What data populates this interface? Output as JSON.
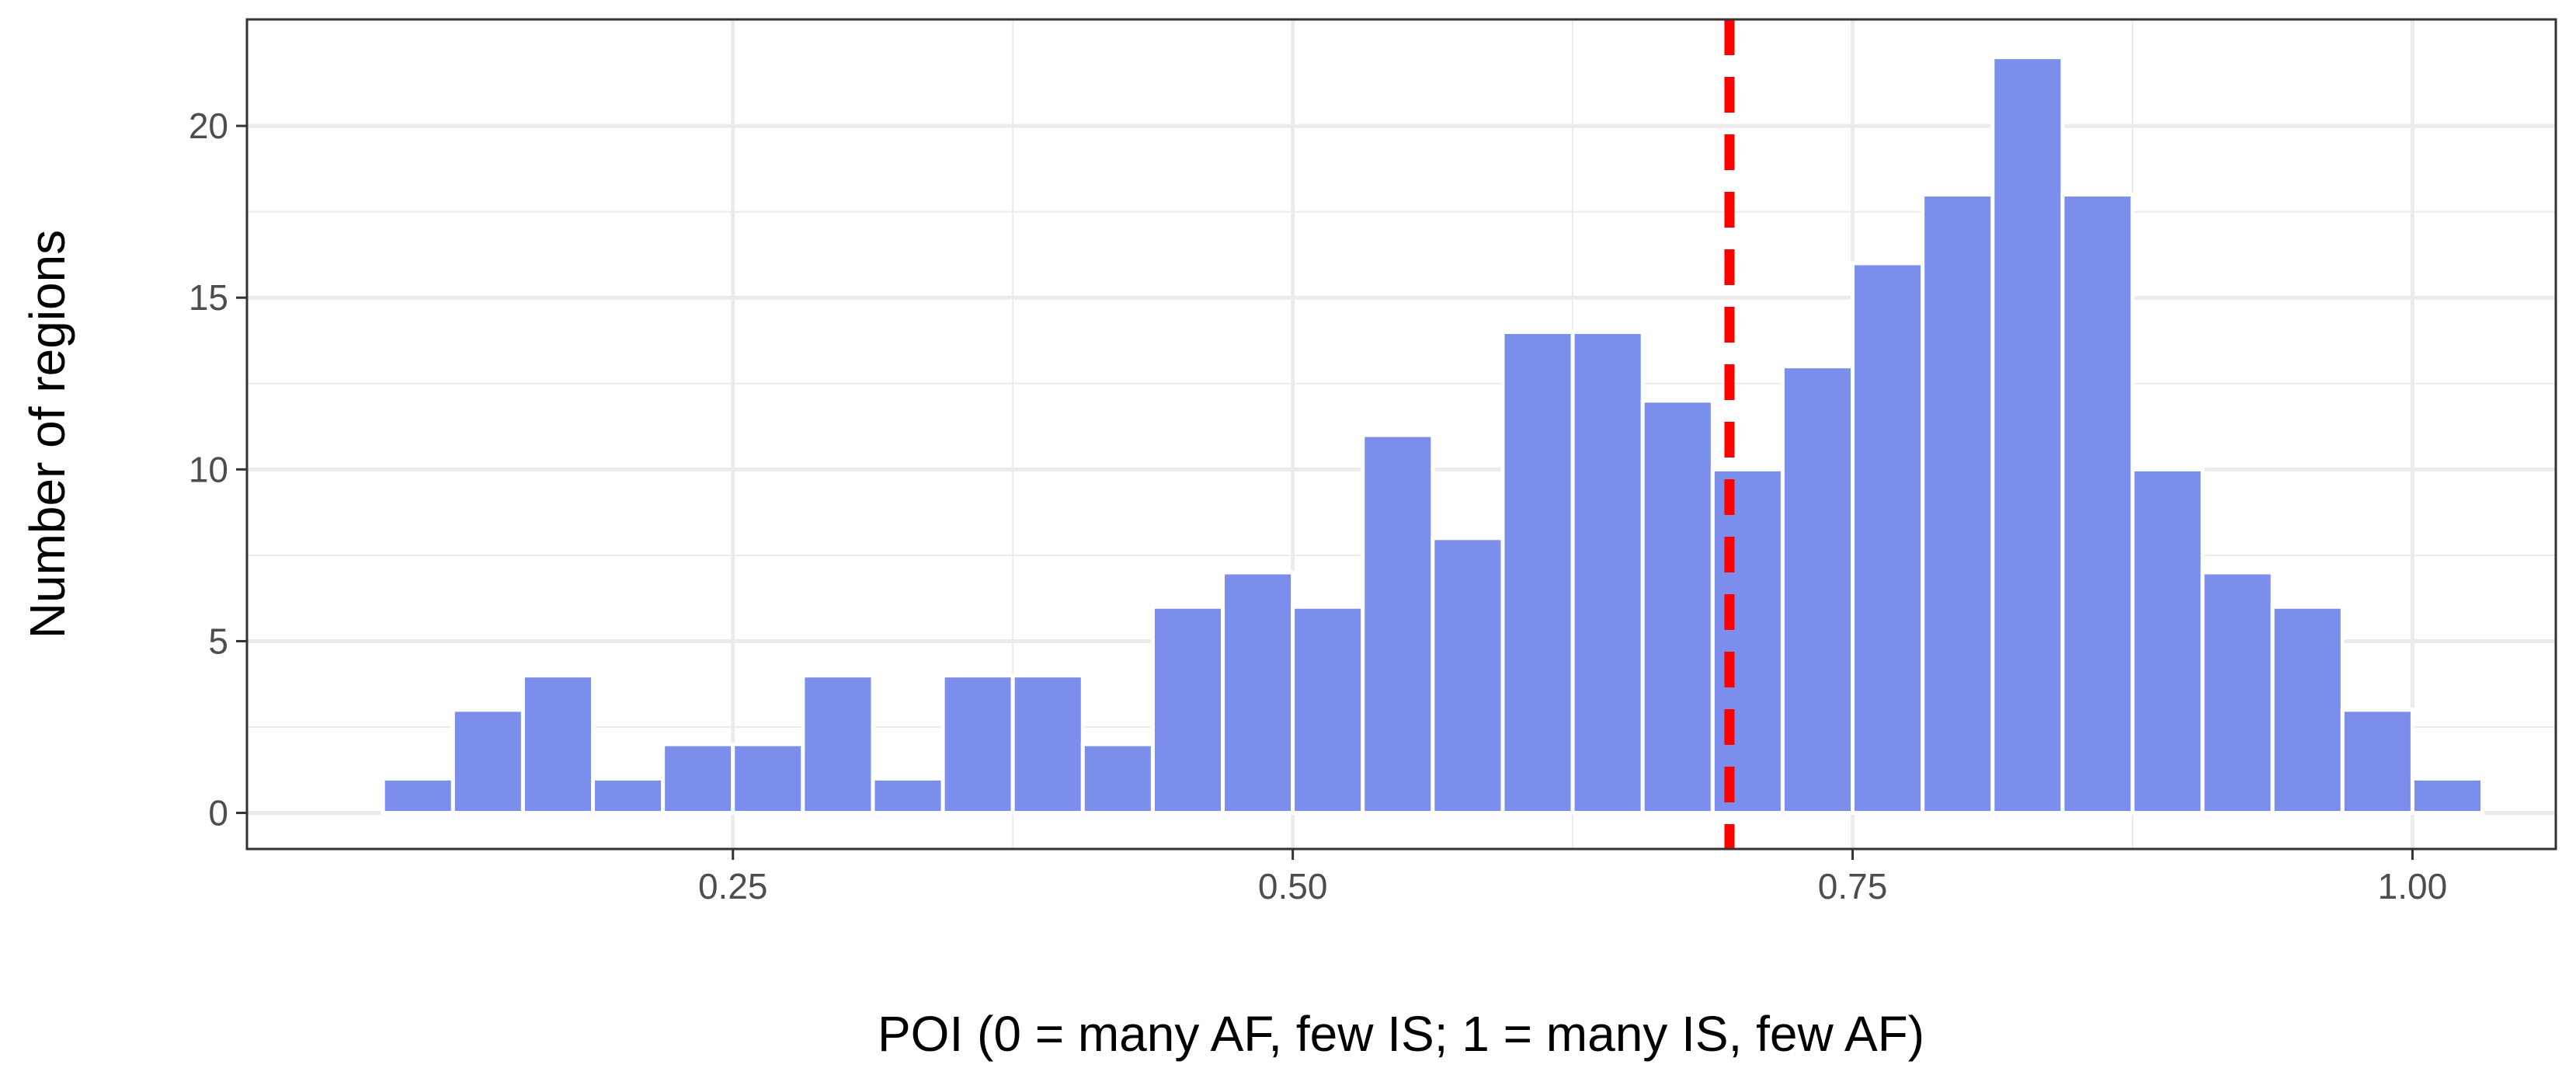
{
  "chart_data": {
    "type": "bar",
    "title": "",
    "xlabel": "POI (0 = many AF, few IS; 1 = many IS, few AF)",
    "ylabel": "Number of regions",
    "bin_width": 0.03125,
    "bin_centers": [
      0.109375,
      0.140625,
      0.171875,
      0.203125,
      0.234375,
      0.265625,
      0.296875,
      0.328125,
      0.359375,
      0.390625,
      0.421875,
      0.453125,
      0.484375,
      0.515625,
      0.546875,
      0.578125,
      0.609375,
      0.640625,
      0.671875,
      0.703125,
      0.734375,
      0.765625,
      0.796875,
      0.828125,
      0.859375,
      0.890625,
      0.921875,
      0.953125,
      0.984375,
      1.015625
    ],
    "values": [
      1,
      3,
      4,
      1,
      2,
      2,
      4,
      1,
      4,
      4,
      2,
      6,
      7,
      6,
      11,
      8,
      14,
      14,
      12,
      10,
      13,
      16,
      18,
      22,
      18,
      10,
      7,
      6,
      3,
      1
    ],
    "xlim": [
      0.033,
      1.064
    ],
    "ylim": [
      -1.05,
      23.1
    ],
    "x_ticks": [
      0.25,
      0.5,
      0.75,
      1.0
    ],
    "x_tick_labels": [
      "0.25",
      "0.50",
      "0.75",
      "1.00"
    ],
    "y_ticks": [
      0,
      5,
      10,
      15,
      20
    ],
    "y_tick_labels": [
      "0",
      "5",
      "10",
      "15",
      "20"
    ],
    "reference_line": {
      "x": 0.695,
      "style": "dashed"
    },
    "grid": true,
    "legend": "none",
    "colors": {
      "bar_fill": "#7b8eeb",
      "bar_stroke": "#ffffff",
      "reference_line": "#ff0000",
      "grid": "#ebebeb",
      "panel_border": "#333333"
    }
  }
}
